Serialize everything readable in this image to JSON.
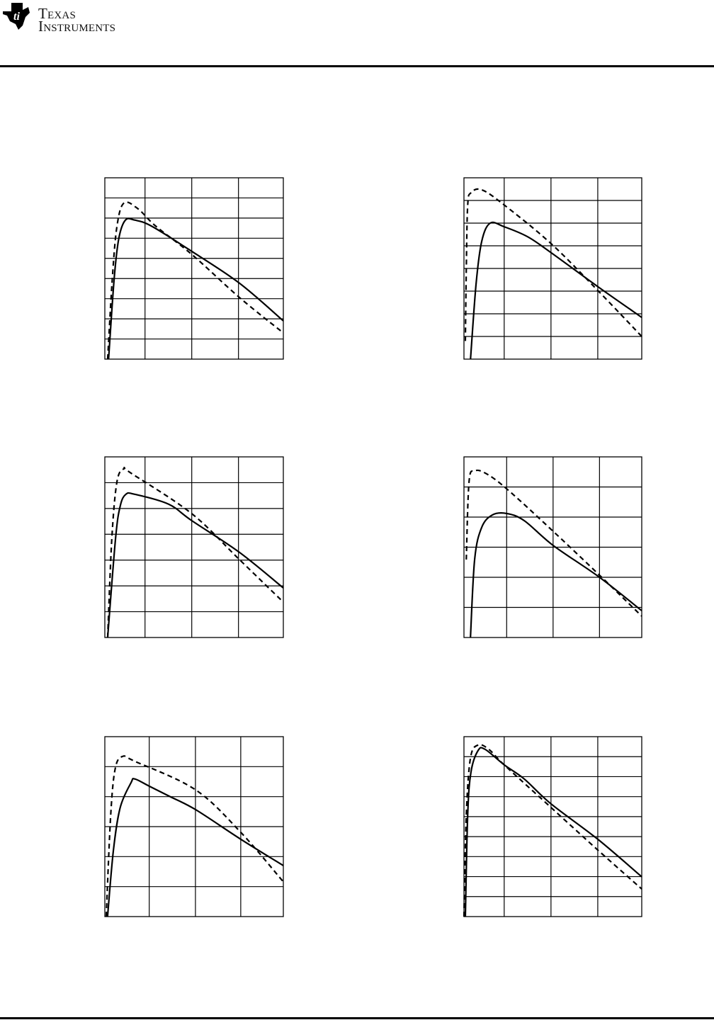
{
  "header": {
    "logo_line1": "Texas",
    "logo_line2": "Instruments"
  },
  "colors": {
    "ink": "#000000",
    "grid": "#000000",
    "background": "#ffffff"
  },
  "chart_data": [
    {
      "type": "line",
      "title": "",
      "xlabel": "",
      "ylabel": "",
      "xlim": [
        0,
        3.82
      ],
      "ylim": [
        0,
        9
      ],
      "x_gridlines": [
        0.86,
        1.86,
        2.86
      ],
      "y_gridlines": [
        1,
        2,
        3,
        4,
        5,
        6,
        7,
        8
      ],
      "grid": true,
      "series": [
        {
          "style": "solid",
          "points": [
            [
              0.08,
              0
            ],
            [
              0.2,
              4
            ],
            [
              0.3,
              6
            ],
            [
              0.44,
              6.9
            ],
            [
              0.64,
              6.9
            ],
            [
              1.0,
              6.6
            ],
            [
              1.86,
              5.35
            ],
            [
              2.88,
              3.77
            ],
            [
              3.82,
              1.9
            ]
          ]
        },
        {
          "style": "dashed",
          "points": [
            [
              0.06,
              0
            ],
            [
              0.16,
              4
            ],
            [
              0.26,
              6.6
            ],
            [
              0.41,
              7.75
            ],
            [
              0.71,
              7.46
            ],
            [
              1.09,
              6.6
            ],
            [
              1.86,
              5.2
            ],
            [
              2.88,
              3.06
            ],
            [
              3.82,
              1.3
            ]
          ]
        }
      ]
    },
    {
      "type": "line",
      "title": "",
      "xlabel": "",
      "ylabel": "",
      "xlim": [
        0,
        3.8
      ],
      "ylim": [
        0,
        8
      ],
      "x_gridlines": [
        0.86,
        1.86,
        2.86
      ],
      "y_gridlines": [
        1,
        2,
        3,
        4,
        5,
        6,
        7
      ],
      "grid": true,
      "series": [
        {
          "style": "solid",
          "points": [
            [
              0.14,
              0
            ],
            [
              0.26,
              3.34
            ],
            [
              0.38,
              5.2
            ],
            [
              0.56,
              6.0
            ],
            [
              0.86,
              5.84
            ],
            [
              1.36,
              5.4
            ],
            [
              1.86,
              4.7
            ],
            [
              2.86,
              3.2
            ],
            [
              3.8,
              1.84
            ]
          ]
        },
        {
          "style": "dashed",
          "points": [
            [
              0.03,
              0.8
            ],
            [
              0.05,
              4
            ],
            [
              0.08,
              6.8
            ],
            [
              0.15,
              7.34
            ],
            [
              0.38,
              7.47
            ],
            [
              0.86,
              6.8
            ],
            [
              1.86,
              5.1
            ],
            [
              2.86,
              3.03
            ],
            [
              3.8,
              1.0
            ]
          ]
        }
      ]
    },
    {
      "type": "line",
      "title": "",
      "xlabel": "",
      "ylabel": "",
      "xlim": [
        0,
        3.82
      ],
      "ylim": [
        0,
        7
      ],
      "x_gridlines": [
        0.86,
        1.86,
        2.86
      ],
      "y_gridlines": [
        1,
        2,
        3,
        4,
        5,
        6
      ],
      "grid": true,
      "series": [
        {
          "style": "solid",
          "points": [
            [
              0.06,
              0
            ],
            [
              0.23,
              3.85
            ],
            [
              0.33,
              5.1
            ],
            [
              0.45,
              5.55
            ],
            [
              0.64,
              5.55
            ],
            [
              1.36,
              5.17
            ],
            [
              1.86,
              4.53
            ],
            [
              2.88,
              3.3
            ],
            [
              3.82,
              1.92
            ]
          ]
        },
        {
          "style": "dashed",
          "points": [
            [
              0.06,
              0
            ],
            [
              0.15,
              3.85
            ],
            [
              0.26,
              6.04
            ],
            [
              0.41,
              6.54
            ],
            [
              0.56,
              6.37
            ],
            [
              1.86,
              4.8
            ],
            [
              2.88,
              3.02
            ],
            [
              3.82,
              1.37
            ]
          ]
        }
      ]
    },
    {
      "type": "line",
      "title": "",
      "xlabel": "",
      "ylabel": "",
      "xlim": [
        0,
        3.83
      ],
      "ylim": [
        0,
        6
      ],
      "x_gridlines": [
        0.92,
        1.92,
        2.92
      ],
      "y_gridlines": [
        1,
        2,
        3,
        4,
        5
      ],
      "grid": true,
      "series": [
        {
          "style": "solid",
          "points": [
            [
              0.14,
              0
            ],
            [
              0.23,
              2.59
            ],
            [
              0.38,
              3.65
            ],
            [
              0.61,
              4.07
            ],
            [
              0.92,
              4.12
            ],
            [
              1.3,
              3.88
            ],
            [
              1.92,
              3.06
            ],
            [
              2.92,
              2.0
            ],
            [
              3.83,
              0.89
            ]
          ]
        },
        {
          "style": "dashed",
          "points": [
            [
              0.05,
              2.59
            ],
            [
              0.11,
              5.18
            ],
            [
              0.23,
              5.53
            ],
            [
              0.46,
              5.46
            ],
            [
              0.92,
              4.94
            ],
            [
              1.92,
              3.53
            ],
            [
              2.92,
              2.07
            ],
            [
              3.83,
              0.71
            ]
          ]
        }
      ]
    },
    {
      "type": "line",
      "title": "",
      "xlabel": "",
      "ylabel": "",
      "xlim": [
        0,
        3.94
      ],
      "ylim": [
        0,
        6
      ],
      "x_gridlines": [
        0.98,
        2.0,
        3.0
      ],
      "y_gridlines": [
        1,
        2,
        3,
        4,
        5
      ],
      "grid": true,
      "series": [
        {
          "style": "solid",
          "points": [
            [
              0.06,
              0
            ],
            [
              0.19,
              2.22
            ],
            [
              0.34,
              3.64
            ],
            [
              0.58,
              4.47
            ],
            [
              0.66,
              4.59
            ],
            [
              0.98,
              4.35
            ],
            [
              1.44,
              4.0
            ],
            [
              2.0,
              3.57
            ],
            [
              3.0,
              2.58
            ],
            [
              3.94,
              1.7
            ]
          ]
        },
        {
          "style": "dashed",
          "points": [
            [
              0.03,
              0
            ],
            [
              0.13,
              3.4
            ],
            [
              0.23,
              4.94
            ],
            [
              0.39,
              5.34
            ],
            [
              0.66,
              5.18
            ],
            [
              2.0,
              4.23
            ],
            [
              3.0,
              2.81
            ],
            [
              3.94,
              1.16
            ]
          ]
        }
      ]
    },
    {
      "type": "line",
      "title": "",
      "xlabel": "",
      "ylabel": "",
      "xlim": [
        0,
        3.8
      ],
      "ylim": [
        0,
        9
      ],
      "x_gridlines": [
        0.86,
        1.86,
        2.86
      ],
      "y_gridlines": [
        1,
        2,
        3,
        4,
        5,
        6,
        7,
        8
      ],
      "grid": true,
      "series": [
        {
          "style": "solid",
          "points": [
            [
              0.03,
              0
            ],
            [
              0.08,
              5.1
            ],
            [
              0.15,
              7.23
            ],
            [
              0.3,
              8.3
            ],
            [
              0.45,
              8.37
            ],
            [
              0.86,
              7.59
            ],
            [
              1.29,
              6.88
            ],
            [
              1.86,
              5.64
            ],
            [
              2.86,
              3.87
            ],
            [
              3.8,
              1.99
            ]
          ]
        },
        {
          "style": "dashed",
          "points": [
            [
              0.0,
              0
            ],
            [
              0.05,
              5.1
            ],
            [
              0.14,
              7.94
            ],
            [
              0.3,
              8.58
            ],
            [
              0.53,
              8.37
            ],
            [
              0.86,
              7.59
            ],
            [
              1.86,
              5.46
            ],
            [
              2.86,
              3.33
            ],
            [
              3.8,
              1.38
            ]
          ]
        }
      ]
    }
  ]
}
